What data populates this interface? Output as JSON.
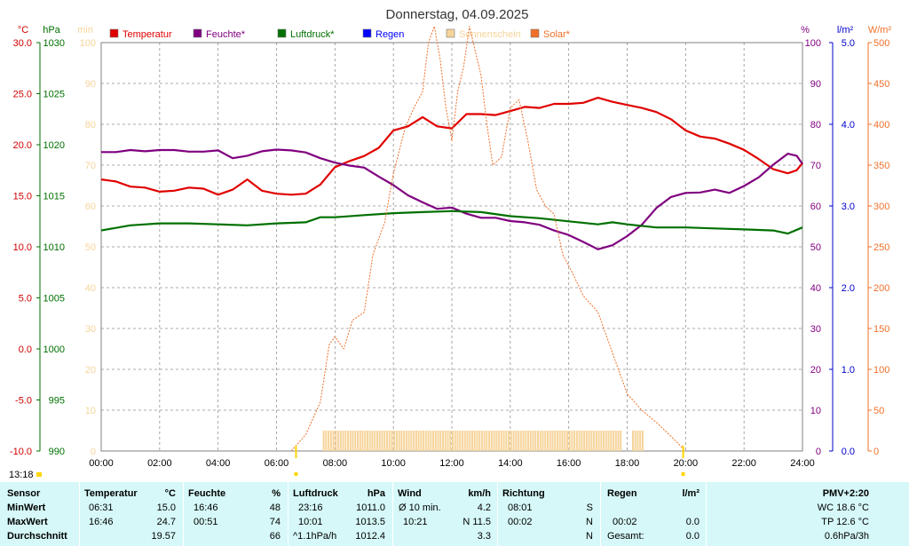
{
  "chart_data": {
    "type": "line",
    "title": "Donnerstag, 04.09.2025",
    "units": {
      "temperature": "°C",
      "pressure": "hPa",
      "sunshine": "min",
      "humidity": "%",
      "rain": "l/m²",
      "solar": "W/m²"
    },
    "axes": {
      "temperature": {
        "range": [
          -10,
          30
        ],
        "ticks": [
          "30.0",
          "25.0",
          "20.0",
          "15.0",
          "10.0",
          "5.0",
          "0.0",
          "-5.0",
          "-10.0"
        ]
      },
      "pressure": {
        "range": [
          990,
          1030
        ],
        "ticks": [
          "1030",
          "1025",
          "1020",
          "1015",
          "1010",
          "1005",
          "1000",
          "995",
          "990"
        ]
      },
      "sunshine": {
        "range": [
          0,
          100
        ],
        "ticks": [
          "100",
          "90",
          "80",
          "70",
          "60",
          "50",
          "40",
          "30",
          "20",
          "10",
          "0"
        ]
      },
      "humidity": {
        "range": [
          0,
          100
        ],
        "ticks": [
          "100",
          "90",
          "80",
          "70",
          "60",
          "50",
          "40",
          "30",
          "20",
          "10",
          "0"
        ]
      },
      "rain": {
        "range": [
          0,
          5
        ],
        "ticks": [
          "5.0",
          "4.0",
          "3.0",
          "2.0",
          "1.0",
          "0.0"
        ]
      },
      "solar": {
        "range": [
          0,
          500
        ],
        "ticks": [
          "500",
          "450",
          "400",
          "350",
          "300",
          "250",
          "200",
          "150",
          "100",
          "50",
          "0"
        ]
      },
      "time": {
        "range": [
          0,
          24
        ],
        "ticks": [
          "00:00",
          "02:00",
          "04:00",
          "06:00",
          "08:00",
          "10:00",
          "12:00",
          "14:00",
          "16:00",
          "18:00",
          "20:00",
          "22:00",
          "24:00"
        ]
      }
    },
    "grid": true,
    "legend_position": "top",
    "legend": [
      {
        "label": "Temperatur",
        "color": "#e00000"
      },
      {
        "label": "Feuchte*",
        "color": "#800080"
      },
      {
        "label": "Luftdruck*",
        "color": "#007000"
      },
      {
        "label": "Regen",
        "color": "#0000ff"
      },
      {
        "label": "Sonnenschein",
        "color": "#f6d49a"
      },
      {
        "label": "Solar*",
        "color": "#f0702a"
      }
    ],
    "series": [
      {
        "name": "Temperatur",
        "axis": "temperature",
        "color": "#e00000",
        "x": [
          0,
          0.5,
          1,
          1.5,
          2,
          2.5,
          3,
          3.5,
          4,
          4.5,
          5,
          5.5,
          6,
          6.5,
          7,
          7.5,
          8,
          8.5,
          9,
          9.5,
          10,
          10.5,
          11,
          11.5,
          12,
          12.5,
          13,
          13.5,
          14,
          14.5,
          15,
          15.5,
          16,
          16.5,
          17,
          17.5,
          18,
          18.5,
          19,
          19.5,
          20,
          20.5,
          21,
          21.5,
          22,
          22.5,
          23,
          23.5,
          23.8,
          24
        ],
        "y": [
          16.6,
          16.4,
          15.9,
          15.8,
          15.4,
          15.5,
          15.8,
          15.7,
          15.1,
          15.6,
          16.6,
          15.5,
          15.2,
          15.1,
          15.2,
          16.1,
          17.8,
          18.4,
          18.9,
          19.7,
          21.4,
          21.8,
          22.7,
          21.8,
          21.6,
          23.0,
          23.0,
          22.9,
          23.3,
          23.7,
          23.6,
          24.0,
          24.0,
          24.1,
          24.6,
          24.2,
          23.9,
          23.6,
          23.2,
          22.5,
          21.4,
          20.8,
          20.6,
          20.1,
          19.5,
          18.6,
          17.6,
          17.2,
          17.5,
          18.2
        ]
      },
      {
        "name": "Feuchte*",
        "axis": "humidity",
        "color": "#800080",
        "x": [
          0,
          0.5,
          1,
          1.5,
          2,
          2.5,
          3,
          3.5,
          4,
          4.5,
          5,
          5.5,
          6,
          6.5,
          7,
          7.5,
          8,
          8.5,
          9,
          9.5,
          10,
          10.5,
          11,
          11.5,
          12,
          12.5,
          13,
          13.5,
          14,
          14.5,
          15,
          15.5,
          16,
          16.5,
          17,
          17.5,
          18,
          18.5,
          19,
          19.5,
          20,
          20.5,
          21,
          21.5,
          22,
          22.5,
          23,
          23.5,
          23.8,
          24
        ],
        "y": [
          73.2,
          73.2,
          73.7,
          73.4,
          73.7,
          73.7,
          73.3,
          73.3,
          73.6,
          71.7,
          72.3,
          73.4,
          73.8,
          73.6,
          73.1,
          71.7,
          70.6,
          69.9,
          69.4,
          67.2,
          65.1,
          62.6,
          60.9,
          59.3,
          59.6,
          58.1,
          57.1,
          57.1,
          56.3,
          56.0,
          55.4,
          54.0,
          52.9,
          51.2,
          49.4,
          50.4,
          52.6,
          55.4,
          59.5,
          62.2,
          63.2,
          63.3,
          64.0,
          63.2,
          64.9,
          67.0,
          70.1,
          72.8,
          72.3,
          70.3
        ]
      },
      {
        "name": "Luftdruck*",
        "axis": "pressure",
        "color": "#007000",
        "x": [
          0,
          1,
          2,
          3,
          4,
          5,
          6,
          7,
          7.5,
          8,
          9,
          10,
          11,
          12,
          13,
          14,
          15,
          16,
          17,
          17.5,
          18,
          19,
          20,
          21,
          22,
          23,
          23.5,
          24
        ],
        "y": [
          1011.6,
          1012.1,
          1012.3,
          1012.3,
          1012.2,
          1012.1,
          1012.3,
          1012.4,
          1012.9,
          1012.9,
          1013.1,
          1013.3,
          1013.4,
          1013.5,
          1013.4,
          1013.0,
          1012.8,
          1012.5,
          1012.2,
          1012.4,
          1012.2,
          1011.9,
          1011.9,
          1011.8,
          1011.7,
          1011.6,
          1011.3,
          1011.9
        ]
      },
      {
        "name": "Solar*",
        "axis": "solar",
        "color": "#f0702a",
        "x": [
          6.5,
          7,
          7.5,
          7.8,
          8,
          8.3,
          8.6,
          9,
          9.3,
          9.7,
          10,
          10.4,
          10.7,
          11,
          11.2,
          11.4,
          11.6,
          11.8,
          12,
          12.2,
          12.4,
          12.6,
          12.8,
          13,
          13.2,
          13.4,
          13.7,
          14,
          14.3,
          14.6,
          14.9,
          15.2,
          15.5,
          15.8,
          16.1,
          16.5,
          17,
          17.5,
          18,
          18.5,
          19,
          19.5,
          20
        ],
        "y": [
          0,
          20,
          60,
          130,
          140,
          125,
          160,
          170,
          240,
          280,
          340,
          395,
          420,
          440,
          500,
          520,
          480,
          420,
          380,
          440,
          470,
          520,
          490,
          460,
          400,
          350,
          360,
          420,
          430,
          380,
          320,
          300,
          290,
          240,
          220,
          190,
          170,
          120,
          70,
          50,
          35,
          18,
          0
        ]
      }
    ],
    "sunshine_bars": {
      "axis": "sunshine",
      "color": "#f6d49a",
      "from": "07:35",
      "to": "18:35",
      "value": 5,
      "gaps": [
        "17:50-18:10"
      ]
    },
    "markers": {
      "time_label": "13:18",
      "sunrise_tick": "06:40",
      "sunset_tick": "19:55"
    }
  },
  "stats": {
    "headers": {
      "sensor": "Sensor",
      "temperatur": "Temperatur",
      "temp_unit": "°C",
      "feuchte": "Feuchte",
      "feuchte_unit": "%",
      "luftdruck": "Luftdruck",
      "luftdruck_unit": "hPa",
      "wind": "Wind",
      "wind_unit": "km/h",
      "richtung": "Richtung",
      "regen": "Regen",
      "regen_unit": "l/m²",
      "pmv": "PMV+2:20"
    },
    "row_labels": {
      "min": "MinWert",
      "max": "MaxWert",
      "avg": "Durchschnitt"
    },
    "temperatur": {
      "min_time": "06:31",
      "min": "15.0",
      "max_time": "16:46",
      "max": "24.7",
      "avg": "19.57"
    },
    "feuchte": {
      "min_time": "16:46",
      "min": "48",
      "max_time": "00:51",
      "max": "74",
      "avg": "66"
    },
    "luftdruck": {
      "min_time": "23:16",
      "min": "1011.0",
      "max_time": "10:01",
      "max": "1013.5",
      "avg_label": "^1.1hPa/h",
      "avg": "1012.4"
    },
    "wind": {
      "min_label": "Ø 10 min.",
      "min": "4.2",
      "max_time": "10:21",
      "max": "N 11.5",
      "avg": "3.3"
    },
    "richtung": {
      "min_time": "08:01",
      "min": "S",
      "max_time": "00:02",
      "max": "N",
      "avg": "N"
    },
    "regen": {
      "max_time": "00:02",
      "max": "0.0",
      "avg_label": "Gesamt:",
      "avg": "0.0"
    },
    "pmv": {
      "wc": "WC 18.6 °C",
      "tp": "TP 12.6 °C",
      "trend": "0.6hPa/3h"
    }
  }
}
